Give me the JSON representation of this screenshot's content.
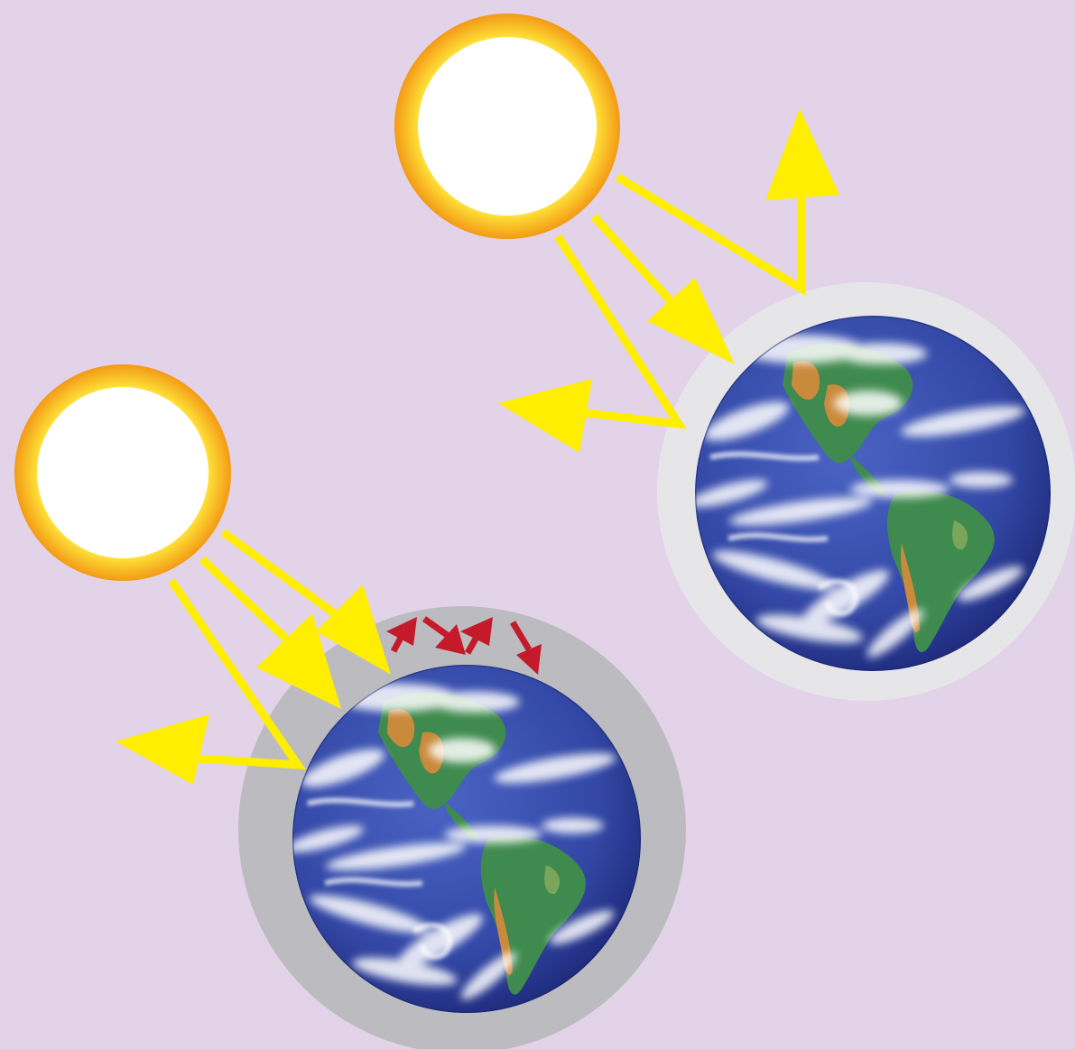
{
  "colors": {
    "background": "#e3d3e8",
    "sun_core": "#ffffff",
    "sun_glow_inner": "#ffef55",
    "sun_glow_outer": "#f6a21a",
    "ray": "#ffee00",
    "heat_arrow": "#c41a2a",
    "atmosphere_thin": "#e6e6e9",
    "atmosphere_thick": "#bcbcc0",
    "ocean": "#3348a6",
    "ocean_dark": "#1f2f86",
    "land": "#3f8a4e",
    "land_dry": "#c98a3c",
    "cloud": "#ffffff"
  },
  "scenes": [
    {
      "id": "thin-atmosphere",
      "atmosphere": "thin",
      "trapped_heat_arrows": 0
    },
    {
      "id": "thick-atmosphere",
      "atmosphere": "thick",
      "trapped_heat_arrows": 4
    }
  ]
}
